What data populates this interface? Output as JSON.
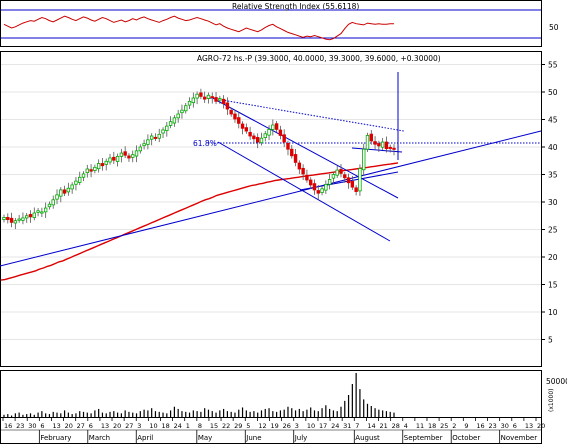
{
  "chart_data": {
    "type": "candlestick",
    "title": "AGRO-72 hs.-P (39.3000, 40.0000, 39.3000, 39.6000, +0.30000)",
    "fib_label": "61.8%",
    "price_axis": {
      "ticks": [
        "55",
        "50",
        "45",
        "40",
        "35",
        "30",
        "25",
        "20",
        "15",
        "10",
        "5"
      ],
      "ylim": [
        0,
        57
      ]
    },
    "rsi": {
      "title": "Relative Strength Index (55.6118)",
      "tick": "50",
      "upper": 70,
      "lower": 30
    },
    "volume": {
      "tick": "50000",
      "unit": "(x1000)"
    },
    "x_axis": {
      "day_ticks": [
        "16",
        "23",
        "30",
        "6",
        "13",
        "20",
        "27",
        "6",
        "13",
        "20",
        "27",
        "3",
        "10",
        "18",
        "24",
        "1",
        "8",
        "15",
        "22",
        "29",
        "5",
        "12",
        "19",
        "26",
        "3",
        "10",
        "17",
        "24",
        "31",
        "7",
        "14",
        "21",
        "28",
        "4",
        "11",
        "18",
        "25",
        "2",
        "9",
        "16",
        "23",
        "30",
        "6",
        "13",
        "20"
      ],
      "month_ticks": [
        "February",
        "March",
        "April",
        "May",
        "June",
        "July",
        "August",
        "September",
        "October",
        "November"
      ]
    },
    "price_close_series": [
      27.2,
      26.8,
      26.3,
      26.6,
      26.9,
      27.1,
      27.5,
      27.3,
      28.0,
      28.4,
      28.2,
      28.9,
      29.6,
      30.4,
      31.3,
      32.2,
      31.6,
      32.5,
      33.1,
      33.8,
      34.5,
      35.1,
      36.0,
      35.6,
      36.3,
      37.0,
      36.6,
      37.4,
      38.0,
      37.6,
      38.3,
      38.9,
      38.5,
      38.0,
      38.6,
      39.3,
      40.0,
      40.6,
      41.3,
      42.0,
      41.6,
      42.3,
      43.1,
      43.8,
      44.6,
      45.3,
      46.0,
      46.7,
      47.5,
      48.3,
      48.9,
      49.6,
      49.2,
      48.7,
      49.4,
      49.0,
      48.3,
      48.8,
      47.9,
      46.9,
      46.0,
      45.1,
      44.3,
      43.4,
      42.9,
      42.0,
      41.5,
      40.9,
      41.6,
      42.4,
      43.2,
      44.0,
      43.2,
      42.1,
      40.9,
      39.6,
      38.4,
      37.2,
      36.0,
      35.1,
      34.0,
      33.1,
      32.2,
      31.6,
      32.4,
      33.2,
      34.1,
      35.0,
      35.8,
      35.2,
      34.4,
      33.5,
      32.7,
      31.9,
      36.1,
      39.6,
      42.1,
      41.1,
      40.5,
      40.2,
      40.9,
      39.7,
      39.9,
      39.6
    ],
    "ma_series": [
      15.8,
      15.9,
      16.1,
      16.3,
      16.5,
      16.7,
      16.9,
      17.1,
      17.3,
      17.5,
      17.8,
      18.0,
      18.3,
      18.5,
      18.8,
      19.1,
      19.3,
      19.6,
      19.9,
      20.2,
      20.5,
      20.8,
      21.1,
      21.4,
      21.7,
      22.0,
      22.3,
      22.6,
      22.9,
      23.2,
      23.5,
      23.8,
      24.1,
      24.4,
      24.7,
      25.0,
      25.3,
      25.6,
      25.9,
      26.2,
      26.5,
      26.8,
      27.1,
      27.4,
      27.7,
      28.0,
      28.3,
      28.6,
      28.9,
      29.2,
      29.5,
      29.8,
      30.1,
      30.4,
      30.6,
      30.9,
      31.2,
      31.4,
      31.6,
      31.8,
      32.0,
      32.2,
      32.4,
      32.6,
      32.8,
      33.0,
      33.1,
      33.3,
      33.4,
      33.6,
      33.7,
      33.9,
      34.0,
      34.1,
      34.2,
      34.3,
      34.4,
      34.5,
      34.6,
      34.7,
      34.8,
      34.9,
      35.0,
      35.1,
      35.2,
      35.3,
      35.4,
      35.5,
      35.6,
      35.7,
      35.8,
      35.9,
      36.0,
      36.1,
      36.2,
      36.3,
      36.4,
      36.5,
      36.6,
      36.7,
      36.8,
      36.9,
      37.0,
      37.1
    ],
    "rsi_series": [
      55,
      52,
      49,
      51,
      54,
      57,
      59,
      61,
      60,
      63,
      66,
      64,
      61,
      59,
      62,
      65,
      68,
      66,
      63,
      61,
      64,
      67,
      65,
      62,
      60,
      63,
      66,
      64,
      61,
      58,
      60,
      62,
      59,
      61,
      64,
      62,
      65,
      67,
      64,
      62,
      60,
      58,
      61,
      63,
      66,
      68,
      65,
      63,
      61,
      62,
      64,
      66,
      64,
      62,
      60,
      57,
      54,
      56,
      52,
      49,
      47,
      45,
      43,
      46,
      49,
      47,
      45,
      43,
      46,
      50,
      53,
      55,
      51,
      48,
      45,
      42,
      40,
      38,
      36,
      34,
      36,
      35,
      37,
      35,
      33,
      31,
      30,
      32,
      36,
      40,
      48,
      55,
      58,
      56,
      55,
      54,
      57,
      56,
      55,
      56,
      55,
      55,
      56,
      56
    ],
    "volume_series": [
      3,
      4,
      2,
      5,
      6,
      3,
      4,
      5,
      3,
      6,
      8,
      5,
      4,
      7,
      6,
      5,
      9,
      6,
      4,
      5,
      8,
      7,
      6,
      5,
      9,
      11,
      6,
      5,
      7,
      8,
      6,
      5,
      9,
      7,
      6,
      5,
      8,
      10,
      9,
      12,
      8,
      7,
      6,
      5,
      9,
      14,
      11,
      8,
      7,
      6,
      9,
      8,
      7,
      12,
      10,
      8,
      6,
      9,
      11,
      8,
      7,
      6,
      10,
      13,
      9,
      7,
      8,
      6,
      9,
      11,
      12,
      8,
      7,
      9,
      10,
      14,
      12,
      9,
      11,
      8,
      10,
      13,
      9,
      8,
      12,
      16,
      11,
      9,
      8,
      14,
      22,
      30,
      45,
      60,
      38,
      24,
      18,
      15,
      12,
      10,
      9,
      8,
      7,
      6
    ]
  }
}
